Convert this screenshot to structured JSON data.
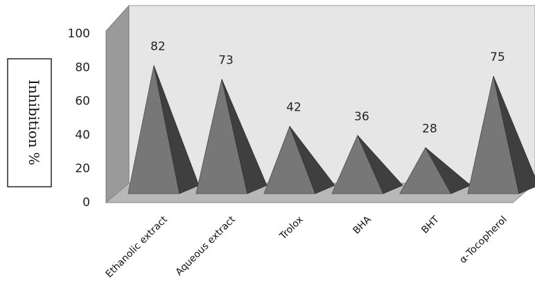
{
  "chart_data": {
    "type": "bar",
    "bar_shape": "pyramid",
    "three_d": true,
    "categories": [
      "Ethanolic extract",
      "Aqueous extract",
      "Trolox",
      "BHA",
      "BHT",
      "α-Tocopherol"
    ],
    "values": [
      82,
      73,
      42,
      36,
      28,
      75
    ],
    "data_labels": [
      "82",
      "73",
      "42",
      "36",
      "28",
      "75"
    ],
    "ylabel": "Inhibition %",
    "ylim": [
      0,
      100
    ],
    "yticks": [
      "0",
      "20",
      "40",
      "60",
      "80",
      "100"
    ],
    "grid": false,
    "legend": "none",
    "colors": {
      "bar_front": "#777777",
      "bar_side": "#3f3f3f",
      "wall": "#e6e6e6",
      "wall_side": "#9a9a9a",
      "floor": "#b8b8b8"
    }
  }
}
